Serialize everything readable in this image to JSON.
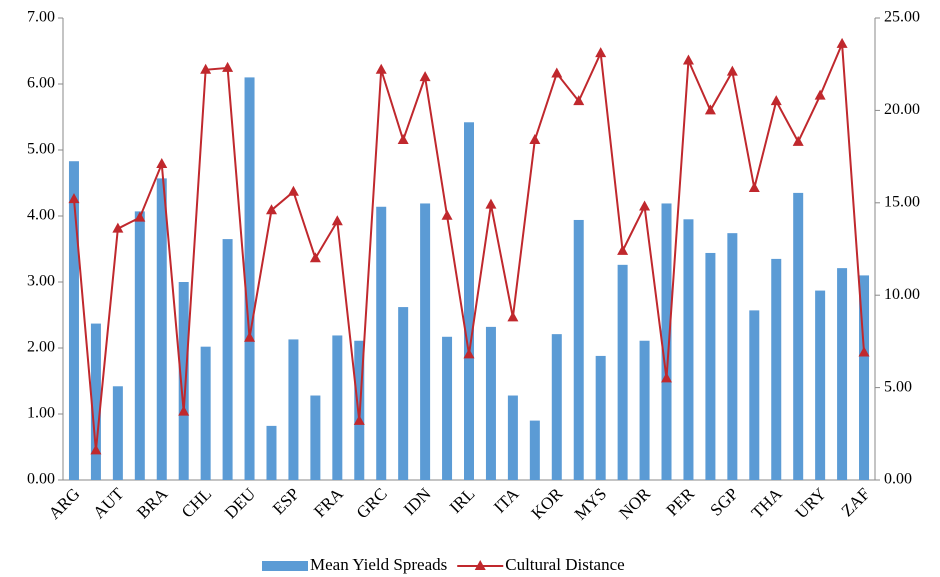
{
  "chart_data": {
    "type": "bar-line",
    "categories": [
      "ARG",
      null,
      "AUT",
      null,
      "BRA",
      null,
      "CHL",
      null,
      "DEU",
      null,
      "ESP",
      null,
      "FRA",
      null,
      "GRC",
      null,
      "IDN",
      null,
      "IRL",
      null,
      "ITA",
      null,
      "KOR",
      null,
      "MYS",
      null,
      "NOR",
      null,
      "PER",
      null,
      "SGP",
      null,
      "THA",
      null,
      "URY",
      null,
      "ZAF"
    ],
    "series": [
      {
        "name": "Mean Yield Spreads",
        "type": "bar",
        "color": "#5b9bd5",
        "values": [
          4.83,
          2.37,
          1.42,
          4.07,
          4.57,
          3.0,
          2.02,
          3.65,
          6.1,
          0.82,
          2.13,
          1.28,
          2.19,
          2.11,
          4.14,
          2.62,
          4.19,
          2.17,
          5.42,
          2.32,
          1.28,
          0.9,
          2.21,
          3.94,
          1.88,
          3.26,
          2.11,
          4.19,
          3.95,
          3.44,
          3.74,
          2.57,
          3.35,
          4.35,
          2.87,
          3.21,
          3.1
        ]
      },
      {
        "name": "Cultural Distance",
        "type": "line",
        "axis": "y2",
        "color": "#c0282d",
        "values": [
          15.2,
          1.6,
          13.6,
          14.2,
          17.1,
          3.7,
          22.2,
          22.3,
          7.7,
          14.6,
          15.6,
          12.0,
          14.0,
          3.2,
          22.2,
          18.4,
          21.8,
          14.3,
          6.8,
          14.9,
          8.8,
          18.4,
          22.0,
          20.5,
          23.1,
          12.4,
          14.8,
          5.5,
          22.7,
          20.0,
          22.1,
          15.8,
          20.5,
          18.3,
          20.8,
          23.6,
          6.9
        ]
      }
    ],
    "ylim": [
      0,
      7
    ],
    "yticks": [
      {
        "value": 0,
        "label": "0.00"
      },
      {
        "value": 1,
        "label": "1.00"
      },
      {
        "value": 2,
        "label": "2.00"
      },
      {
        "value": 3,
        "label": "3.00"
      },
      {
        "value": 4,
        "label": "4.00"
      },
      {
        "value": 5,
        "label": "5.00"
      },
      {
        "value": 6,
        "label": "6.00"
      },
      {
        "value": 7,
        "label": "7.00"
      }
    ],
    "y2lim": [
      0,
      25
    ],
    "y2ticks": [
      {
        "value": 0,
        "label": "0.00"
      },
      {
        "value": 5,
        "label": "5.00"
      },
      {
        "value": 10,
        "label": "10.00"
      },
      {
        "value": 15,
        "label": "15.00"
      },
      {
        "value": 20,
        "label": "20.00"
      },
      {
        "value": 25,
        "label": "25.00"
      }
    ],
    "legend": "bottom"
  }
}
